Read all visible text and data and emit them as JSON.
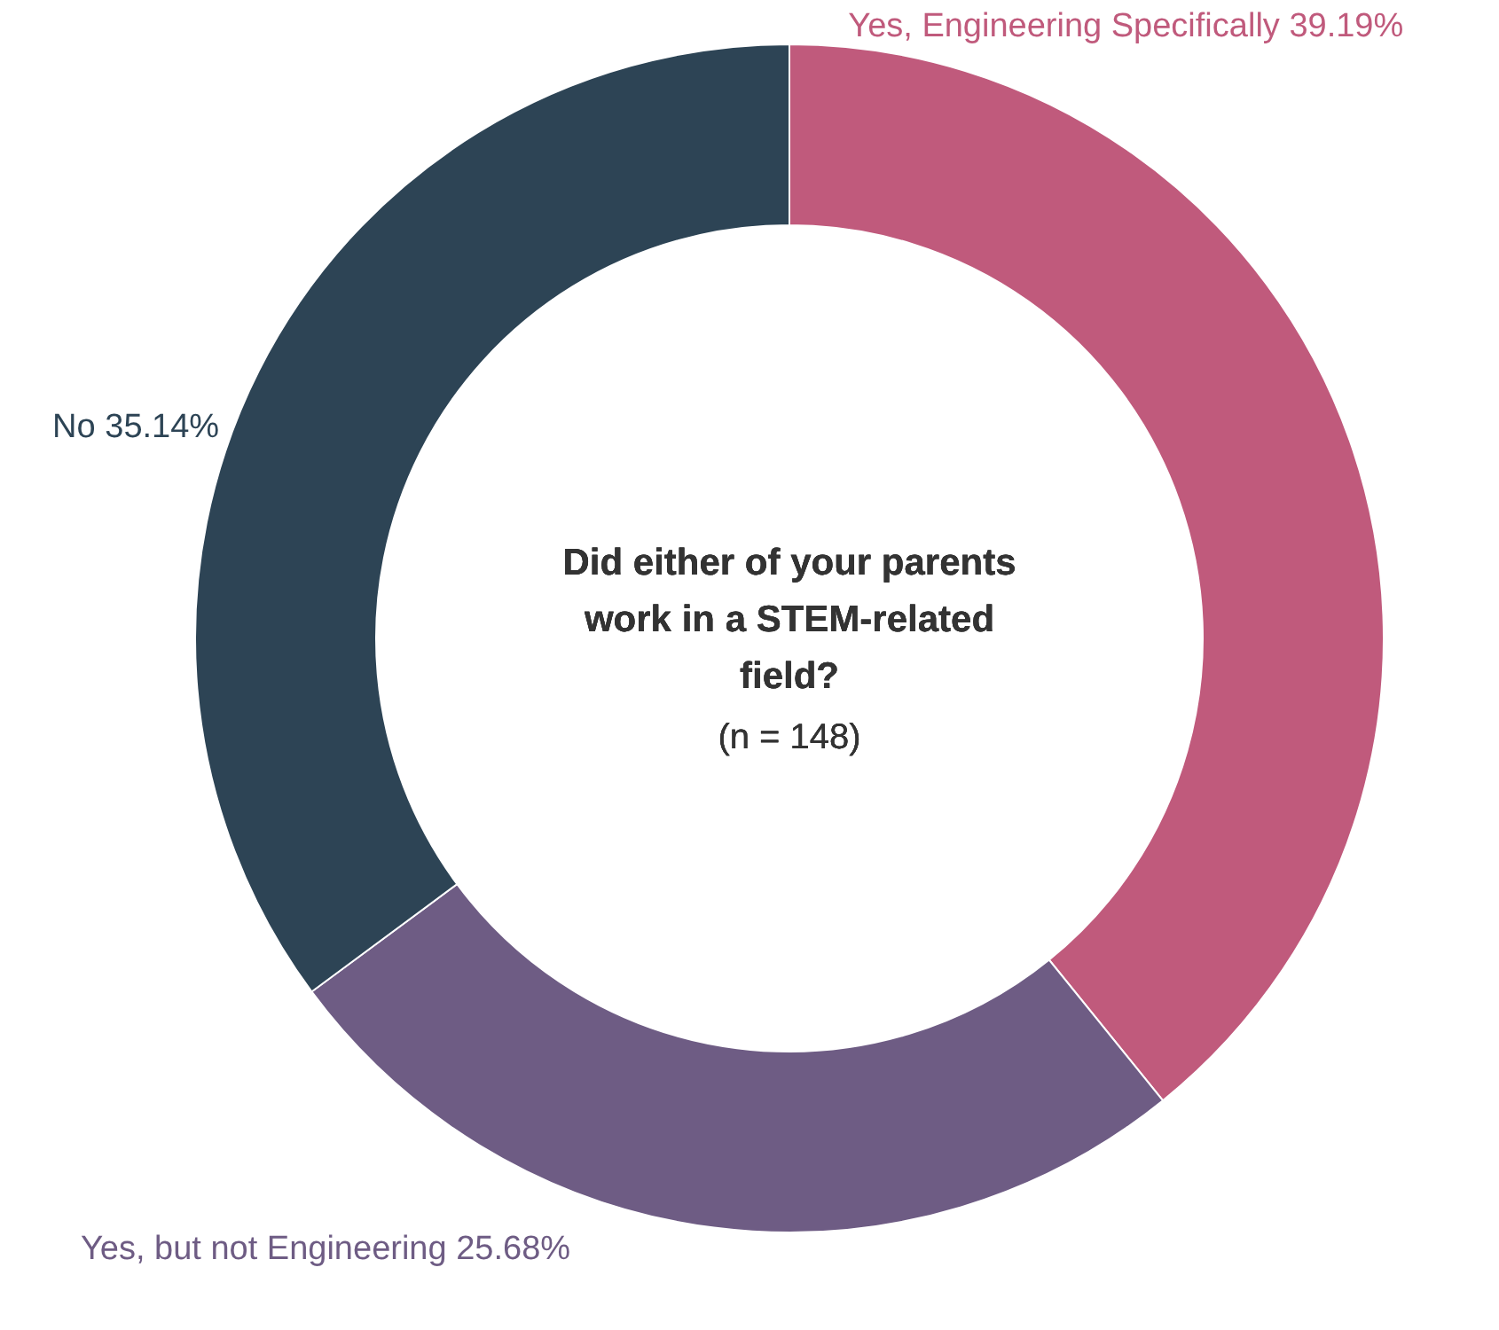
{
  "chart_data": {
    "type": "donut",
    "title": "Did either of your parents work in a STEM-related field?",
    "subtitle": "(n = 148)",
    "categories": [
      "Yes, Engineering Specifically",
      "Yes, but not Engineering",
      "No"
    ],
    "values": [
      39.19,
      25.68,
      35.14
    ],
    "value_labels": [
      "39.19%",
      "25.68%",
      "35.14%"
    ],
    "colors": [
      "#c05a7c",
      "#6e5c84",
      "#2d4455"
    ]
  }
}
